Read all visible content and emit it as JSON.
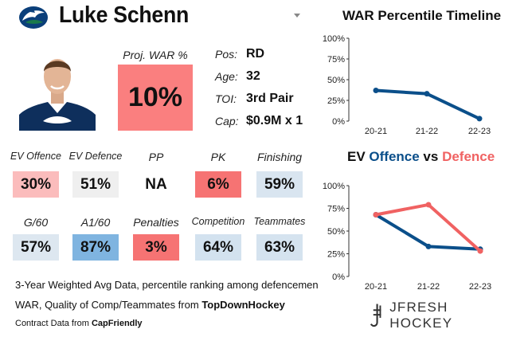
{
  "header": {
    "player_name": "Luke Schenn",
    "team_logo": "orca-logo-icon"
  },
  "projection": {
    "label": "Proj. WAR %",
    "value": "10%",
    "color": "#fa7f7f"
  },
  "info": [
    {
      "key": "Pos:",
      "value": "RD"
    },
    {
      "key": "Age:",
      "value": "32"
    },
    {
      "key": "TOI:",
      "value": "3rd Pair"
    },
    {
      "key": "Cap:",
      "value": "$0.9M x 1"
    }
  ],
  "stats_row1": [
    {
      "label": "EV Offence",
      "value": "30%",
      "color": "#fbbcbc"
    },
    {
      "label": "EV Defence",
      "value": "51%",
      "color": "#efefef"
    },
    {
      "label": "PP",
      "value": "NA",
      "color": "#ffffff"
    },
    {
      "label": "PK",
      "value": "6%",
      "color": "#f67373"
    },
    {
      "label": "Finishing",
      "value": "59%",
      "color": "#d9e5f0"
    }
  ],
  "stats_row2": [
    {
      "label": "G/60",
      "value": "57%",
      "color": "#dde7f0"
    },
    {
      "label": "A1/60",
      "value": "87%",
      "color": "#7fb4e0"
    },
    {
      "label": "Penalties",
      "value": "3%",
      "color": "#f67373"
    },
    {
      "label": "Competition",
      "value": "64%",
      "color": "#d3e2ef"
    },
    {
      "label": "Teammates",
      "value": "63%",
      "color": "#d5e3ef"
    }
  ],
  "footer": {
    "line1": "3-Year Weighted Avg Data, percentile ranking among defencemen",
    "line2_prefix": "WAR, Quality of Comp/Teammates from ",
    "line2_source": "TopDownHockey",
    "line3_prefix": "Contract Data from ",
    "line3_source": "CapFriendly"
  },
  "brand": {
    "name": "JFRESH HOCKEY",
    "icon": "jfresh-logo-icon"
  },
  "chart_data": [
    {
      "type": "line",
      "title": "WAR Percentile Timeline",
      "categories": [
        "20-21",
        "21-22",
        "22-23"
      ],
      "y_ticks": [
        "100%",
        "75%",
        "50%",
        "25%",
        "0%"
      ],
      "ylim": [
        0,
        100
      ],
      "series": [
        {
          "name": "WAR",
          "values": [
            37,
            33,
            3
          ],
          "color": "#0b4f8a"
        }
      ]
    },
    {
      "type": "line",
      "title_parts": {
        "prefix": "EV ",
        "offence": "Offence",
        "vs": " vs ",
        "defence": "Defence"
      },
      "title_colors": {
        "offence": "#0b4f8a",
        "defence": "#f06262"
      },
      "categories": [
        "20-21",
        "21-22",
        "22-23"
      ],
      "y_ticks": [
        "100%",
        "75%",
        "50%",
        "25%",
        "0%"
      ],
      "ylim": [
        0,
        100
      ],
      "series": [
        {
          "name": "Offence",
          "values": [
            68,
            33,
            30
          ],
          "color": "#0b4f8a"
        },
        {
          "name": "Defence",
          "values": [
            68,
            79,
            28
          ],
          "color": "#f06262"
        }
      ]
    }
  ]
}
